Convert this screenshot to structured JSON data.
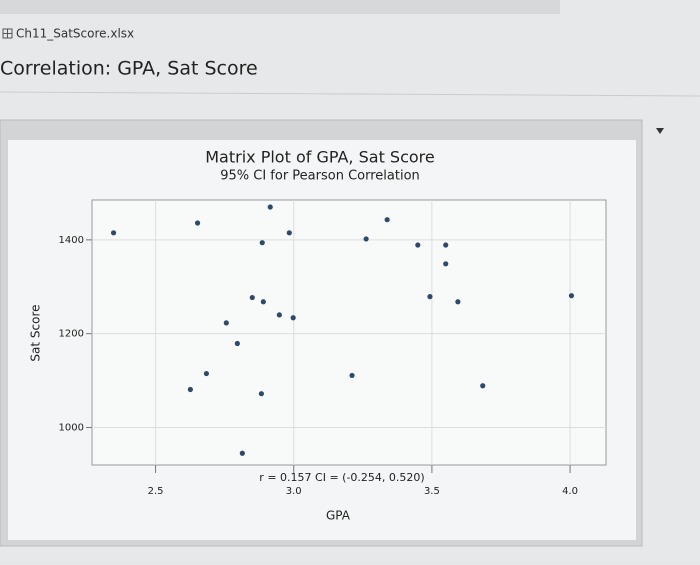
{
  "file_name": "Ch11_SatScore.xlsx",
  "heading": "Correlation: GPA, Sat Score",
  "chart_data": {
    "type": "scatter",
    "title": "Matrix Plot of GPA, Sat Score",
    "subtitle": "95% CI for Pearson Correlation",
    "x_label": "GPA",
    "y_label": "Sat Score",
    "annotation": "r = 0.157  CI = (-0.254, 0.520)",
    "color": "#2d4a6a",
    "grid": true,
    "xlim": [
      2.27,
      4.13
    ],
    "ylim": [
      920,
      1485
    ],
    "xticks": [
      2.5,
      {
        "value": 3,
        "label": "3.0"
      },
      3.5,
      {
        "value": 4,
        "label": "4.0"
      }
    ],
    "yticks": [
      1000,
      1200,
      1400
    ],
    "x": [
      2.348,
      2.652,
      2.915,
      2.886,
      2.984,
      3.262,
      3.338,
      3.449,
      3.55,
      3.55,
      3.493,
      3.594,
      4.005,
      2.85,
      2.89,
      2.948,
      2.998,
      2.756,
      2.796,
      2.684,
      2.626,
      2.883,
      3.211,
      3.684,
      2.814
    ],
    "values": [
      1415,
      1436,
      1470,
      1394,
      1415,
      1402,
      1443,
      1389,
      1389,
      1349,
      1279,
      1268,
      1281,
      1277,
      1268,
      1240,
      1234,
      1223,
      1179,
      1115,
      1081,
      1072,
      1111,
      1089,
      945
    ]
  }
}
